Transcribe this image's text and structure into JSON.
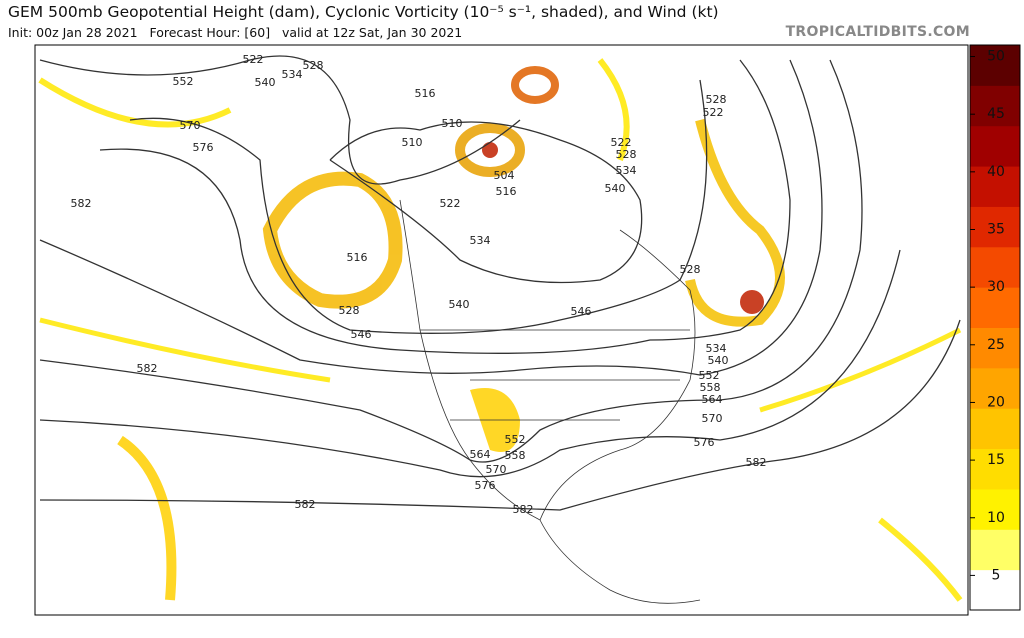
{
  "header": {
    "title": "GEM 500mb Geopotential Height (dam), Cyclonic Vorticity (10⁻⁵ s⁻¹, shaded), and Wind (kt)",
    "init": "Init: 00z Jan 28 2021",
    "forecast_hour": "Forecast Hour: [60]",
    "valid": "valid at 12z Sat, Jan 30 2021",
    "source": "TROPICALTIDBITS.COM"
  },
  "colorbar": {
    "lim": [
      2,
      51
    ],
    "ticks": [
      5,
      10,
      15,
      20,
      25,
      30,
      35,
      40,
      45,
      50
    ],
    "colors": [
      "#ffffff",
      "#ffff66",
      "#fff200",
      "#ffdd00",
      "#ffc400",
      "#ffa500",
      "#ff8a00",
      "#ff6a00",
      "#f44a00",
      "#e02800",
      "#c41000",
      "#a00000",
      "#800000",
      "#5c0000"
    ]
  },
  "contour_labels": [
    "522",
    "534",
    "528",
    "552",
    "540",
    "516",
    "510",
    "510",
    "570",
    "576",
    "504",
    "516",
    "522",
    "534",
    "540",
    "534",
    "528",
    "522",
    "528",
    "522",
    "582",
    "516",
    "528",
    "546",
    "540",
    "546",
    "528",
    "534",
    "540",
    "552",
    "558",
    "564",
    "570",
    "576",
    "582",
    "552",
    "558",
    "564",
    "570",
    "576",
    "582",
    "582",
    "582"
  ]
}
